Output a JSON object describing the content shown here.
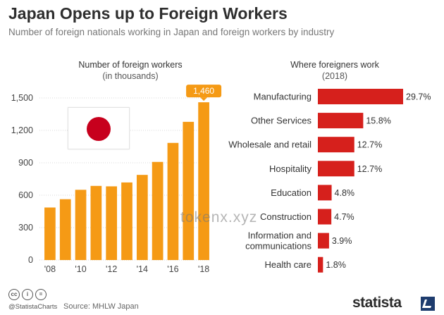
{
  "header": {
    "title": "Japan Opens up to Foreign Workers",
    "subtitle": "Number of foreign nationals working in Japan and foreign workers by industry"
  },
  "chart_data": [
    {
      "type": "bar",
      "title": "Number of foreign workers",
      "subtitle": "(in thousands)",
      "x": [
        "2008",
        "2009",
        "2010",
        "2011",
        "2012",
        "2013",
        "2014",
        "2015",
        "2016",
        "2017",
        "2018"
      ],
      "tick_labels": [
        "'08",
        "'10",
        "'12",
        "'14",
        "'16",
        "'18"
      ],
      "tick_x_index": [
        0,
        2,
        4,
        6,
        8,
        10
      ],
      "values": [
        486,
        563,
        650,
        686,
        682,
        718,
        788,
        908,
        1084,
        1279,
        1460
      ],
      "yticks": [
        0,
        300,
        600,
        900,
        1200,
        1500
      ],
      "ytick_labels": [
        "0",
        "300",
        "600",
        "900",
        "1,200",
        "1,500"
      ],
      "ylim": [
        0,
        1600
      ],
      "highlight_label": "1,460",
      "color": "#f59a15",
      "grid": true
    },
    {
      "type": "bar",
      "orientation": "horizontal",
      "title": "Where foreigners work",
      "subtitle": "(2018)",
      "categories": [
        [
          "Manufacturing"
        ],
        [
          "Other Services"
        ],
        [
          "Wholesale and retail"
        ],
        [
          "Hospitality"
        ],
        [
          "Education"
        ],
        [
          "Construction"
        ],
        [
          "Information and",
          "communications"
        ],
        [
          "Health care"
        ]
      ],
      "values": [
        29.7,
        15.8,
        12.7,
        12.7,
        4.8,
        4.7,
        3.9,
        1.8
      ],
      "value_labels": [
        "29.7%",
        "15.8%",
        "12.7%",
        "12.7%",
        "4.8%",
        "4.7%",
        "3.9%",
        "1.8%"
      ],
      "color": "#d6201c"
    }
  ],
  "watermark": "tokenx.xyz",
  "footer": {
    "cc_icons": [
      "cc",
      "i",
      "="
    ],
    "handle": "@StatistaCharts",
    "source": "Source: MHLW Japan",
    "brand": "statista"
  },
  "colors": {
    "bar_left": "#f59a15",
    "bar_right": "#d6201c",
    "flag_red": "#c7001d",
    "brand_mark": "#1e3c6e"
  }
}
